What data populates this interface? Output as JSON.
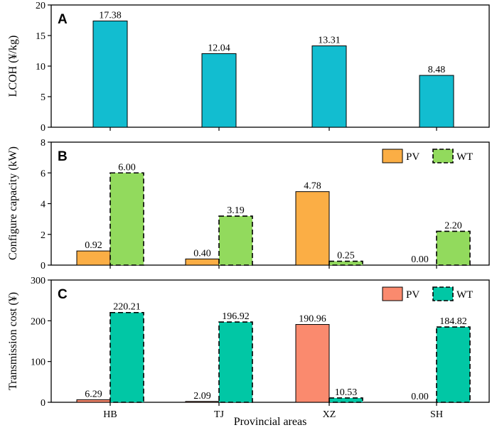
{
  "chart_data": [
    {
      "type": "bar",
      "panel": "A",
      "categories": [
        "HB",
        "TJ",
        "XZ",
        "SH"
      ],
      "series": [
        {
          "name": "",
          "values": [
            17.38,
            12.04,
            13.31,
            8.48
          ],
          "labels": [
            "17.38",
            "12.04",
            "13.31",
            "8.48"
          ],
          "color": "#12BDD0",
          "dashed": false
        }
      ],
      "ylabel": "LCOH (¥/kg)",
      "ylim": [
        0,
        20
      ],
      "yticks": [
        "0",
        "5",
        "10",
        "15",
        "20"
      ],
      "legend": []
    },
    {
      "type": "bar",
      "panel": "B",
      "categories": [
        "HB",
        "TJ",
        "XZ",
        "SH"
      ],
      "series": [
        {
          "name": "PV",
          "values": [
            0.92,
            0.4,
            4.78,
            0.0
          ],
          "labels": [
            "0.92",
            "0.40",
            "4.78",
            "0.00"
          ],
          "color": "#FBAE45",
          "dashed": false
        },
        {
          "name": "WT",
          "values": [
            6.0,
            3.19,
            0.25,
            2.2
          ],
          "labels": [
            "6.00",
            "3.19",
            "0.25",
            "2.20"
          ],
          "color": "#92DA5D",
          "dashed": true
        }
      ],
      "ylabel": "Configure capacity (kW)",
      "ylim": [
        0,
        8
      ],
      "yticks": [
        "0",
        "2",
        "4",
        "6",
        "8"
      ],
      "legend": [
        "PV",
        "WT"
      ]
    },
    {
      "type": "bar",
      "panel": "C",
      "categories": [
        "HB",
        "TJ",
        "XZ",
        "SH"
      ],
      "series": [
        {
          "name": "PV",
          "values": [
            6.29,
            2.09,
            190.96,
            0.0
          ],
          "labels": [
            "6.29",
            "2.09",
            "190.96",
            "0.00"
          ],
          "color": "#FA8A6E",
          "dashed": false
        },
        {
          "name": "WT",
          "values": [
            220.21,
            196.92,
            10.53,
            184.82
          ],
          "labels": [
            "220.21",
            "196.92",
            "10.53",
            "184.82"
          ],
          "color": "#01C7A5",
          "dashed": true
        }
      ],
      "ylabel": "Transmission cost (¥)",
      "xlabel": "Provincial areas",
      "ylim": [
        0,
        300
      ],
      "yticks": [
        "0",
        "100",
        "200",
        "300"
      ],
      "legend": [
        "PV",
        "WT"
      ]
    }
  ]
}
